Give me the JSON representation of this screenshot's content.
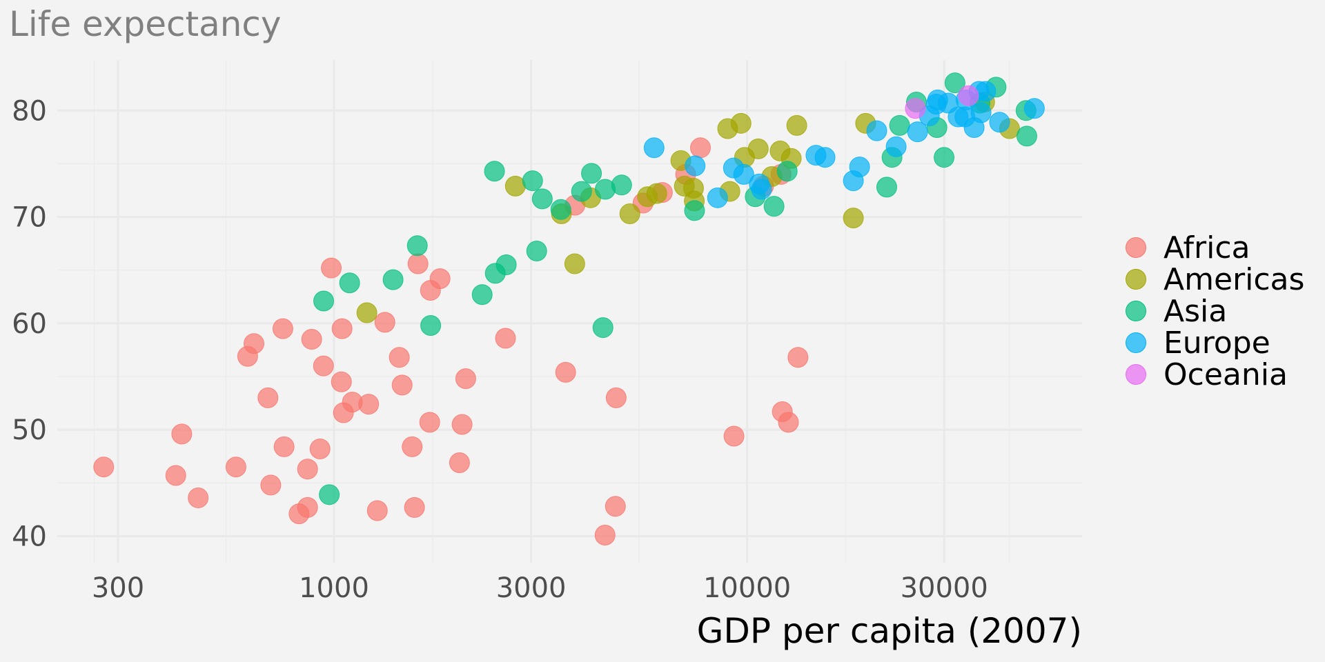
{
  "chart_data": {
    "type": "scatter",
    "title": "Life expectancy",
    "xlabel": "GDP per capita (2007)",
    "ylabel": "",
    "xscale": "log10",
    "xlim": [
      230,
      62000
    ],
    "ylim": [
      37,
      84.5
    ],
    "xticks": [
      300,
      1000,
      3000,
      10000,
      30000
    ],
    "xtick_labels": [
      "300",
      "1000",
      "3000",
      "10000",
      "30000"
    ],
    "yticks": [
      40,
      50,
      60,
      70,
      80
    ],
    "ytick_labels": [
      "40",
      "50",
      "60",
      "70",
      "80"
    ],
    "grid": true,
    "legend_position": "right",
    "point_alpha": 0.7,
    "series": [
      {
        "name": "Africa",
        "color": "#F8766D",
        "points": [
          [
            277,
            46.5
          ],
          [
            428,
            49.6
          ],
          [
            414,
            45.7
          ],
          [
            469,
            43.6
          ],
          [
            579,
            46.5
          ],
          [
            640,
            58.1
          ],
          [
            618,
            56.9
          ],
          [
            752,
            59.5
          ],
          [
            692,
            53.0
          ],
          [
            757,
            48.4
          ],
          [
            703,
            44.8
          ],
          [
            823,
            42.1
          ],
          [
            863,
            42.7
          ],
          [
            883,
            58.5
          ],
          [
            943,
            56.0
          ],
          [
            1042,
            54.5
          ],
          [
            1046,
            59.5
          ],
          [
            1108,
            52.6
          ],
          [
            1054,
            51.6
          ],
          [
            1213,
            52.4
          ],
          [
            925,
            48.2
          ],
          [
            863,
            46.3
          ],
          [
            985,
            65.2
          ],
          [
            1328,
            60.1
          ],
          [
            1439,
            56.8
          ],
          [
            1462,
            54.2
          ],
          [
            2084,
            54.8
          ],
          [
            1705,
            50.7
          ],
          [
            2042,
            50.5
          ],
          [
            1597,
            65.6
          ],
          [
            1806,
            64.2
          ],
          [
            1712,
            63.1
          ],
          [
            2601,
            58.6
          ],
          [
            3637,
            55.4
          ],
          [
            4820,
            53.0
          ],
          [
            4800,
            42.8
          ],
          [
            4530,
            40.1
          ],
          [
            1546,
            48.4
          ],
          [
            2013,
            46.9
          ],
          [
            1273,
            42.4
          ],
          [
            1566,
            42.7
          ],
          [
            3830,
            71.1
          ],
          [
            5598,
            71.3
          ],
          [
            6237,
            72.3
          ],
          [
            7710,
            76.5
          ],
          [
            7101,
            74.0
          ],
          [
            10960,
            72.9
          ],
          [
            12080,
            74.0
          ],
          [
            13280,
            56.8
          ],
          [
            12170,
            51.7
          ],
          [
            12590,
            50.7
          ],
          [
            9294,
            49.4
          ]
        ]
      },
      {
        "name": "Americas",
        "color": "#A3A500",
        "points": [
          [
            1201,
            61.0
          ],
          [
            2748,
            72.9
          ],
          [
            3553,
            70.3
          ],
          [
            4181,
            71.8
          ],
          [
            3826,
            65.6
          ],
          [
            5202,
            70.3
          ],
          [
            5740,
            71.9
          ],
          [
            6045,
            72.2
          ],
          [
            6912,
            75.3
          ],
          [
            7048,
            72.9
          ],
          [
            7418,
            72.7
          ],
          [
            7450,
            71.5
          ],
          [
            9085,
            72.4
          ],
          [
            9858,
            75.6
          ],
          [
            10640,
            76.4
          ],
          [
            8974,
            78.3
          ],
          [
            9666,
            78.8
          ],
          [
            13190,
            78.6
          ],
          [
            12020,
            76.2
          ],
          [
            12790,
            75.5
          ],
          [
            11480,
            73.8
          ],
          [
            19360,
            78.8
          ],
          [
            18080,
            69.9
          ],
          [
            43180,
            78.3
          ],
          [
            37580,
            80.8
          ]
        ]
      },
      {
        "name": "Asia",
        "color": "#00BF7D",
        "points": [
          [
            974,
            43.9
          ],
          [
            944,
            62.1
          ],
          [
            1091,
            63.8
          ],
          [
            1390,
            64.1
          ],
          [
            1591,
            67.3
          ],
          [
            1714,
            59.8
          ],
          [
            2284,
            62.7
          ],
          [
            2457,
            64.7
          ],
          [
            2612,
            65.5
          ],
          [
            3095,
            66.8
          ],
          [
            4478,
            59.6
          ],
          [
            2446,
            74.3
          ],
          [
            3025,
            73.4
          ],
          [
            3193,
            71.7
          ],
          [
            3541,
            70.7
          ],
          [
            3975,
            72.4
          ],
          [
            4200,
            74.1
          ],
          [
            4535,
            72.6
          ],
          [
            4969,
            73.0
          ],
          [
            7461,
            70.6
          ],
          [
            10463,
            71.9
          ],
          [
            11620,
            71.0
          ],
          [
            12503,
            74.3
          ],
          [
            21780,
            72.8
          ],
          [
            22430,
            75.6
          ],
          [
            23400,
            78.6
          ],
          [
            28810,
            78.4
          ],
          [
            29980,
            75.6
          ],
          [
            25700,
            80.8
          ],
          [
            31860,
            82.6
          ],
          [
            36620,
            80.7
          ],
          [
            40060,
            82.2
          ],
          [
            47340,
            80.0
          ],
          [
            47550,
            77.6
          ]
        ]
      },
      {
        "name": "Europe",
        "color": "#00B0F6",
        "points": [
          [
            5954,
            76.5
          ],
          [
            7483,
            74.8
          ],
          [
            8482,
            71.8
          ],
          [
            9267,
            74.6
          ],
          [
            9816,
            74.0
          ],
          [
            10700,
            73.1
          ],
          [
            10840,
            72.6
          ],
          [
            14680,
            75.8
          ],
          [
            15440,
            75.6
          ],
          [
            18720,
            74.7
          ],
          [
            18080,
            73.4
          ],
          [
            20600,
            78.1
          ],
          [
            22950,
            76.6
          ],
          [
            25860,
            78.0
          ],
          [
            27620,
            79.5
          ],
          [
            28700,
            80.6
          ],
          [
            28930,
            81.0
          ],
          [
            30670,
            80.7
          ],
          [
            32420,
            79.4
          ],
          [
            33660,
            79.4
          ],
          [
            33890,
            81.0
          ],
          [
            35450,
            78.4
          ],
          [
            36420,
            81.8
          ],
          [
            36840,
            79.8
          ],
          [
            37810,
            81.8
          ],
          [
            40850,
            78.9
          ],
          [
            49590,
            80.2
          ]
        ]
      },
      {
        "name": "Oceania",
        "color": "#E76BF3",
        "points": [
          [
            25540,
            80.2
          ],
          [
            34360,
            81.4
          ]
        ]
      }
    ]
  }
}
